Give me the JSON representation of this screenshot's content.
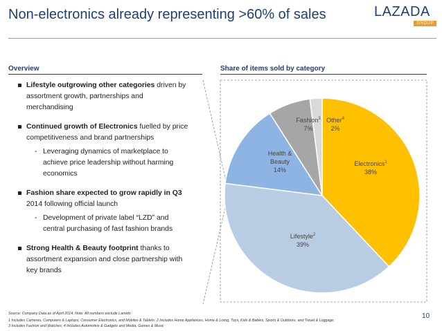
{
  "header": {
    "title": "Non-electronics already representing >60% of sales",
    "logo_main": "LAZADA",
    "logo_sub": "GROUP"
  },
  "overview": {
    "heading": "Overview",
    "bullets": [
      {
        "bold": "Lifestyle outgrowing other categories",
        "text": " driven by assortment growth, partnerships and merchandising",
        "subs": []
      },
      {
        "bold": "Continued growth of Electronics",
        "text": " fuelled by price competitiveness and brand partnerships",
        "subs": [
          "Leveraging dynamics of marketplace to achieve price leadership without harming economics"
        ]
      },
      {
        "bold": "Fashion share expected to grow rapidly in Q3",
        "text": " 2014 following official launch",
        "subs": [
          "Development of private label “LZD” and central purchasing of fast fashion brands"
        ]
      },
      {
        "bold": "Strong Health & Beauty footprint",
        "text": " thanks to assortment expansion and close partnership with key brands",
        "subs": []
      }
    ],
    "dash": "-"
  },
  "chart_heading": "Share of items sold by category",
  "chart_data": {
    "type": "pie",
    "title": "Share of items sold by category",
    "slices": [
      {
        "label": "Electronics",
        "sup": "1",
        "value": 38,
        "value_label": "38%",
        "color": "#ffc000"
      },
      {
        "label": "Lifestyle",
        "sup": "2",
        "value": 39,
        "value_label": "39%",
        "color": "#b8cce4"
      },
      {
        "label": "Health & Beauty",
        "sup": "",
        "value": 14,
        "value_label": "14%",
        "color": "#8eb4e3"
      },
      {
        "label": "Fashion",
        "sup": "3",
        "value": 7,
        "value_label": "7%",
        "color": "#a6a6a6"
      },
      {
        "label": "Other",
        "sup": "4",
        "value": 2,
        "value_label": "2%",
        "color": "#d9d9d9"
      }
    ],
    "start": "12 o'clock",
    "direction": "clockwise"
  },
  "footnotes": {
    "source": "Source: Company Data as of April 2014; Note: All numbers exclude Lamido",
    "note1": "1 Includes Cameras, Computers & Laptops, Consumer Electronics, and Mobiles & Tablets; 2 Includes Home Appliances, Home & Living, Toys, Kids & Babies, Sports & Outdoors, and Travel & Luggage;",
    "note2": "3 Includes Fashion and Watches; 4 Includes Automotive & Gadgets and Media, Games & Music"
  },
  "page_number": "10"
}
